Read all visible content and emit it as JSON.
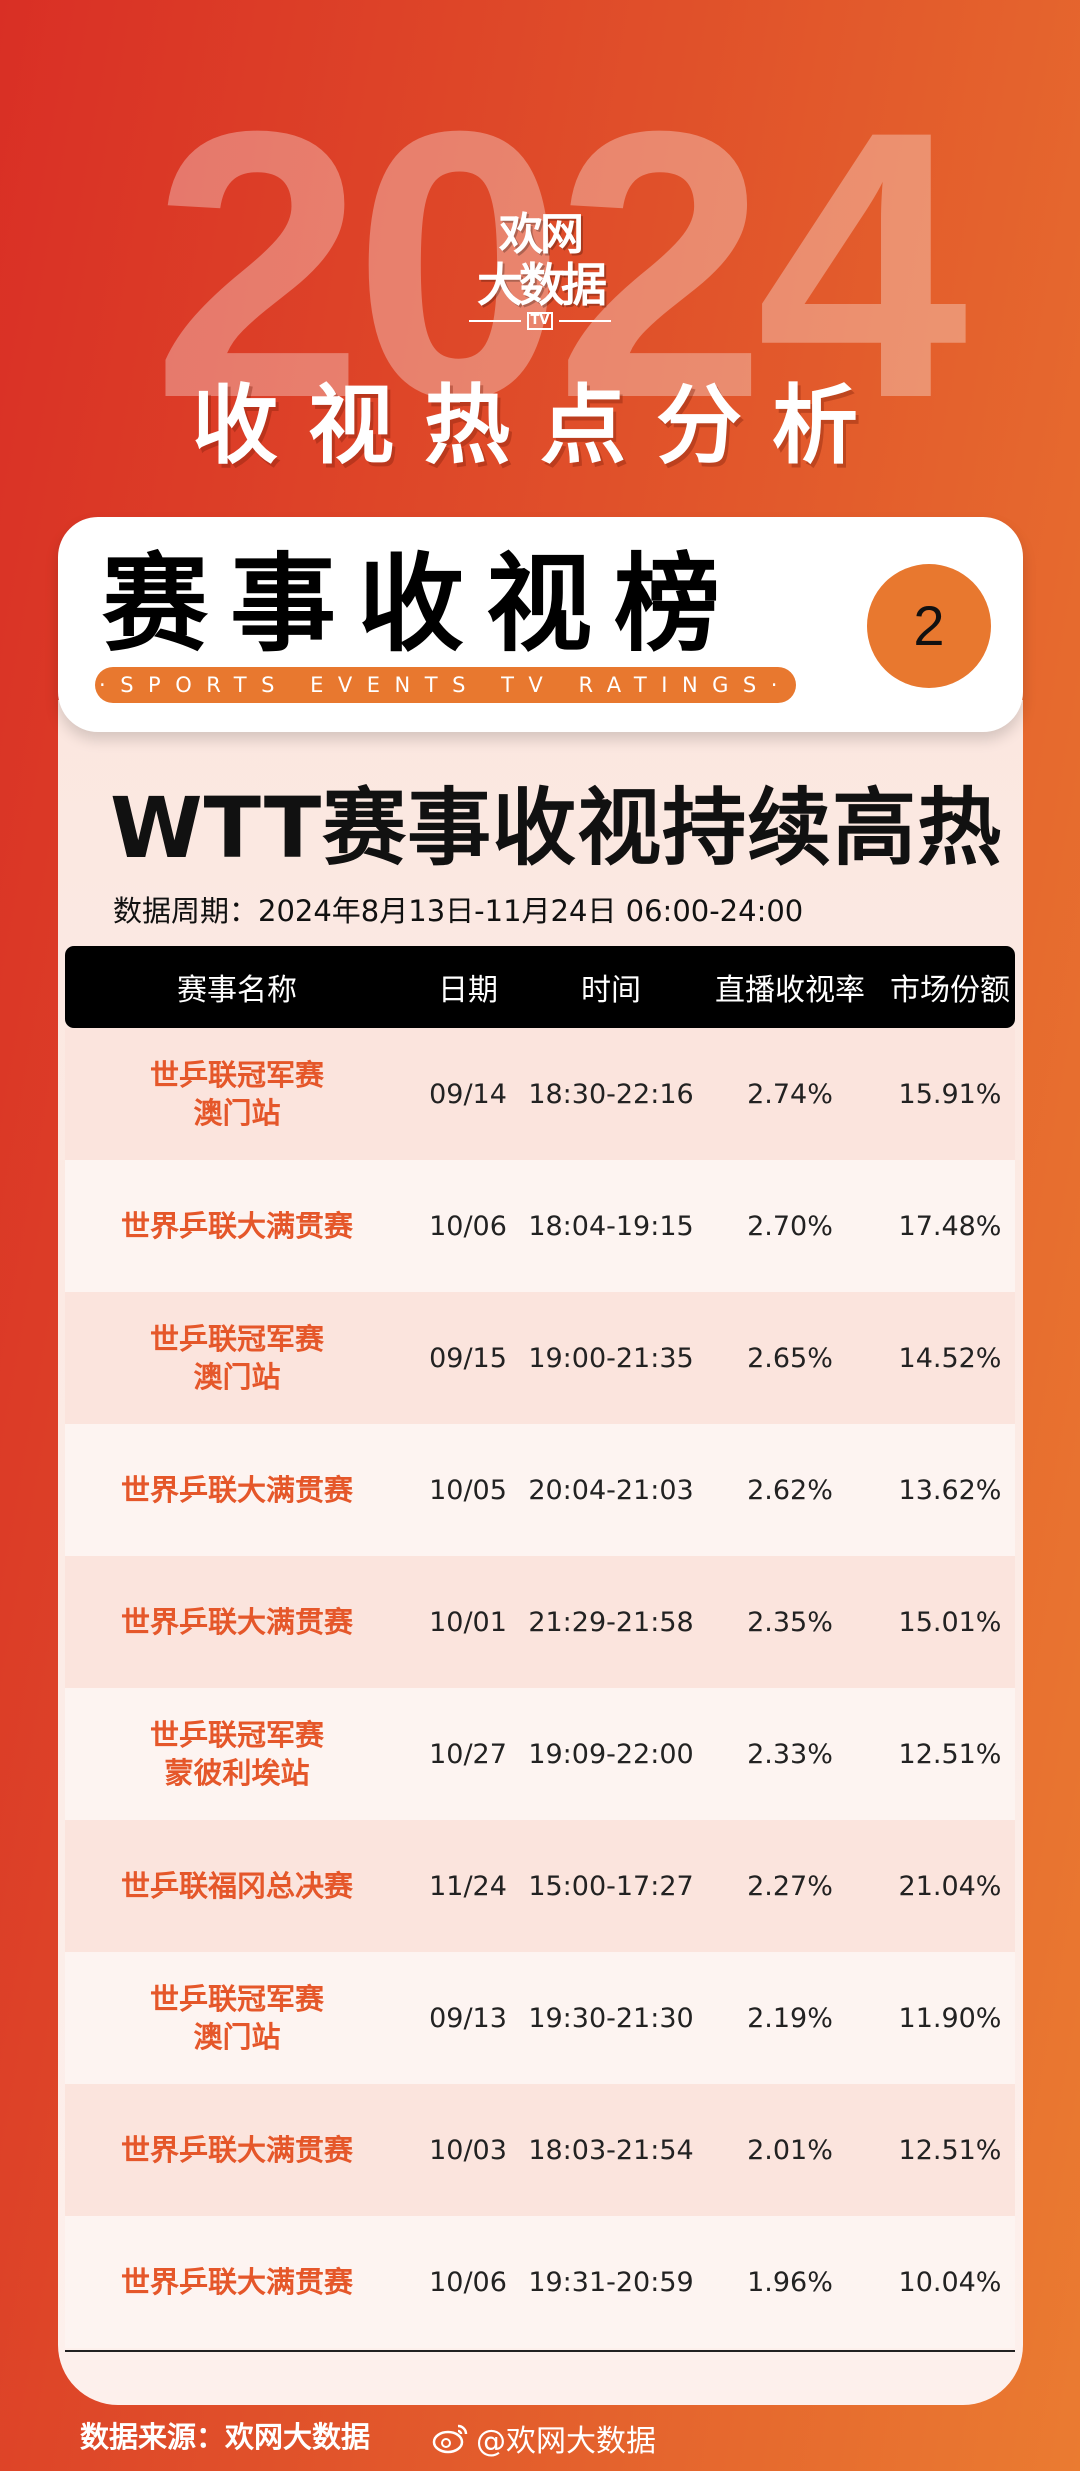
{
  "header": {
    "year": "2024",
    "logo": {
      "line1": "欢网",
      "line2": "大数据",
      "badge": "TV"
    },
    "subtitle": "收视热点分析"
  },
  "card": {
    "title": "赛事收视榜",
    "subtitle_en": "·SPORTS EVENTS TV RATINGS·",
    "page_number": "2"
  },
  "main": {
    "title": "WTT赛事收视持续高热",
    "period": "数据周期：2024年8月13日-11月24日 06:00-24:00",
    "columns": [
      "赛事名称",
      "日期",
      "时间",
      "直播收视率",
      "市场份额"
    ],
    "rows": [
      {
        "name": "世乒联冠军赛",
        "name2": "澳门站",
        "date": "09/14",
        "time": "18:30-22:16",
        "rating": "2.74%",
        "share": "15.91%"
      },
      {
        "name": "世界乒联大满贯赛",
        "name2": "",
        "date": "10/06",
        "time": "18:04-19:15",
        "rating": "2.70%",
        "share": "17.48%"
      },
      {
        "name": "世乒联冠军赛",
        "name2": "澳门站",
        "date": "09/15",
        "time": "19:00-21:35",
        "rating": "2.65%",
        "share": "14.52%"
      },
      {
        "name": "世界乒联大满贯赛",
        "name2": "",
        "date": "10/05",
        "time": "20:04-21:03",
        "rating": "2.62%",
        "share": "13.62%"
      },
      {
        "name": "世界乒联大满贯赛",
        "name2": "",
        "date": "10/01",
        "time": "21:29-21:58",
        "rating": "2.35%",
        "share": "15.01%"
      },
      {
        "name": "世乒联冠军赛",
        "name2": "蒙彼利埃站",
        "date": "10/27",
        "time": "19:09-22:00",
        "rating": "2.33%",
        "share": "12.51%"
      },
      {
        "name": "世乒联福冈总决赛",
        "name2": "",
        "date": "11/24",
        "time": "15:00-17:27",
        "rating": "2.27%",
        "share": "21.04%"
      },
      {
        "name": "世乒联冠军赛",
        "name2": "澳门站",
        "date": "09/13",
        "time": "19:30-21:30",
        "rating": "2.19%",
        "share": "11.90%"
      },
      {
        "name": "世界乒联大满贯赛",
        "name2": "",
        "date": "10/03",
        "time": "18:03-21:54",
        "rating": "2.01%",
        "share": "12.51%"
      },
      {
        "name": "世界乒联大满贯赛",
        "name2": "",
        "date": "10/06",
        "time": "19:31-20:59",
        "rating": "1.96%",
        "share": "10.04%"
      }
    ]
  },
  "footer": {
    "source": "数据来源：欢网大数据",
    "weibo_handle": "@欢网大数据",
    "weibo_icon": "weibo-icon"
  },
  "colors": {
    "accent": "#e8782f",
    "name_text": "#e5572a",
    "bg_left": "#d92f25",
    "bg_right": "#ea7b31"
  }
}
